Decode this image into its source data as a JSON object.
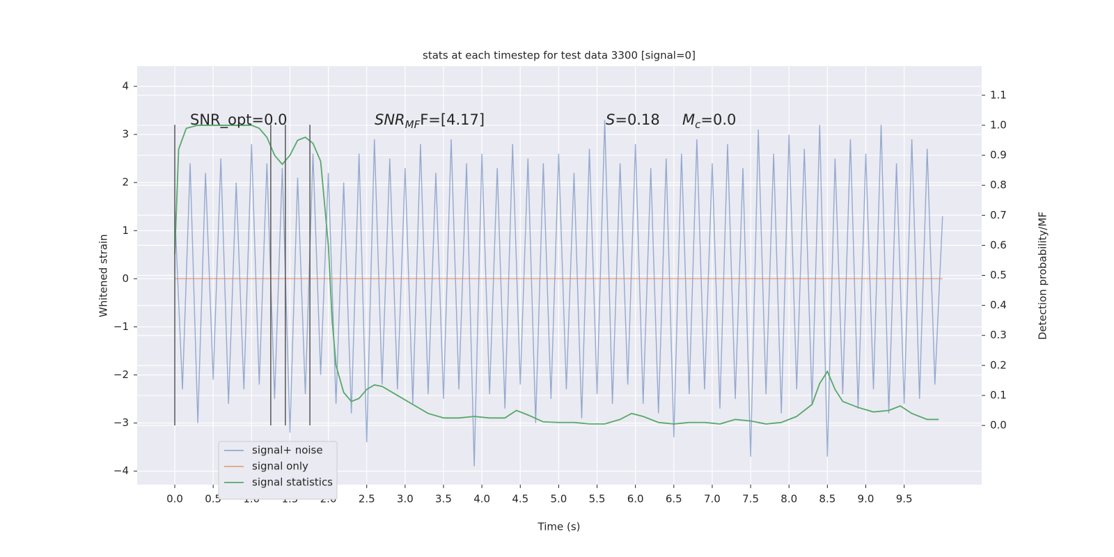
{
  "chart_data": {
    "type": "line",
    "title": "stats at each timestep for test data 3300 [signal=0]",
    "xlabel": "Time (s)",
    "ylabel": "Whitened strain",
    "y2label": "Detection probability/MF",
    "xlim": [
      -0.49,
      10.51
    ],
    "ylim": [
      -4.28,
      4.42
    ],
    "y2lim": [
      -0.197,
      1.197
    ],
    "xticks": [
      {
        "value": 0,
        "label": "0.0"
      },
      0.5,
      {
        "value": 1,
        "label": "1.0"
      },
      1.5,
      {
        "value": 2,
        "label": "2.0"
      },
      2.5,
      {
        "value": 3,
        "label": "3.0"
      },
      3.5,
      {
        "value": 4,
        "label": "4.0"
      },
      4.5,
      {
        "value": 5,
        "label": "5.0"
      },
      5.5,
      {
        "value": 6,
        "label": "6.0"
      },
      6.5,
      {
        "value": 7,
        "label": "7.0"
      },
      7.5,
      {
        "value": 8,
        "label": "8.0"
      },
      8.5,
      {
        "value": 9,
        "label": "9.0"
      },
      9.5
    ],
    "yticks": [
      {
        "value": -4,
        "label": "−4"
      },
      {
        "value": -3,
        "label": "−3"
      },
      {
        "value": -2,
        "label": "−2"
      },
      {
        "value": -1,
        "label": "−1"
      },
      0,
      1,
      2,
      3,
      4
    ],
    "y2ticks": [
      {
        "value": 0,
        "label": "0.0"
      },
      0.1,
      0.2,
      0.3,
      0.4,
      0.5,
      0.6,
      0.7,
      0.8,
      0.9,
      {
        "value": 1,
        "label": "1.0"
      },
      1.1
    ],
    "grid": true,
    "legend": "lower left",
    "series": [
      {
        "name": "signal+ noise",
        "color": "#4c72b0",
        "axis": "y",
        "x": [
          0,
          0.1,
          0.2,
          0.3,
          0.4,
          0.5,
          0.6,
          0.7,
          0.8,
          0.9,
          1,
          1.1,
          1.2,
          1.3,
          1.4,
          1.5,
          1.6,
          1.7,
          1.8,
          1.9,
          2,
          2.1,
          2.2,
          2.3,
          2.4,
          2.5,
          2.6,
          2.7,
          2.8,
          2.9,
          3,
          3.1,
          3.2,
          3.3,
          3.4,
          3.5,
          3.6,
          3.7,
          3.8,
          3.9,
          4,
          4.1,
          4.2,
          4.3,
          4.4,
          4.5,
          4.6,
          4.7,
          4.8,
          4.9,
          5,
          5.1,
          5.2,
          5.3,
          5.4,
          5.5,
          5.6,
          5.7,
          5.8,
          5.9,
          6,
          6.1,
          6.2,
          6.3,
          6.4,
          6.5,
          6.6,
          6.7,
          6.8,
          6.9,
          7,
          7.1,
          7.2,
          7.3,
          7.4,
          7.5,
          7.6,
          7.7,
          7.8,
          7.9,
          8,
          8.1,
          8.2,
          8.3,
          8.4,
          8.5,
          8.6,
          8.7,
          8.8,
          8.9,
          9,
          9.1,
          9.2,
          9.3,
          9.4,
          9.5,
          9.6,
          9.7,
          9.8,
          9.9,
          10
        ],
        "values": [
          1.4,
          -2.3,
          2.4,
          -3.0,
          2.2,
          -2.1,
          2.5,
          -2.6,
          2.0,
          -2.3,
          2.8,
          -2.2,
          2.4,
          -2.5,
          2.3,
          -3.2,
          2.1,
          -2.4,
          2.6,
          -2.0,
          2.2,
          -2.6,
          2.0,
          -2.8,
          2.6,
          -3.4,
          2.9,
          -2.2,
          2.5,
          -2.3,
          2.3,
          -2.6,
          2.8,
          -2.4,
          2.2,
          -2.5,
          2.9,
          -2.3,
          2.4,
          -3.9,
          2.6,
          -2.4,
          2.3,
          -2.7,
          2.8,
          -2.2,
          2.5,
          -3.0,
          2.4,
          -2.5,
          2.6,
          -2.3,
          2.2,
          -2.9,
          2.7,
          -2.4,
          3.3,
          -2.6,
          2.4,
          -2.2,
          2.8,
          -2.6,
          2.3,
          -2.8,
          2.5,
          -3.3,
          2.6,
          -2.4,
          2.9,
          -2.3,
          2.4,
          -2.7,
          2.8,
          -2.5,
          2.3,
          -3.7,
          3.1,
          -2.4,
          2.6,
          -2.8,
          3.0,
          -2.3,
          2.7,
          -2.6,
          3.2,
          -3.7,
          2.5,
          -2.4,
          2.9,
          -2.7,
          2.6,
          -2.3,
          3.2,
          -2.8,
          2.4,
          -2.6,
          2.9,
          -2.5,
          2.7,
          -2.2,
          1.3
        ]
      },
      {
        "name": "signal only",
        "color": "#dd8452",
        "axis": "y",
        "x": [
          0,
          10
        ],
        "values": [
          0,
          0
        ]
      },
      {
        "name": "signal statistics",
        "color": "#55a868",
        "axis": "y2",
        "x": [
          0,
          0.05,
          0.15,
          0.3,
          0.5,
          0.7,
          0.9,
          1,
          1.1,
          1.2,
          1.3,
          1.4,
          1.5,
          1.6,
          1.7,
          1.8,
          1.9,
          2,
          2.05,
          2.1,
          2.2,
          2.3,
          2.4,
          2.5,
          2.6,
          2.7,
          2.9,
          3.1,
          3.3,
          3.5,
          3.7,
          3.9,
          4.1,
          4.3,
          4.45,
          4.6,
          4.8,
          5,
          5.2,
          5.4,
          5.6,
          5.8,
          5.95,
          6.1,
          6.3,
          6.5,
          6.7,
          6.9,
          7.1,
          7.3,
          7.5,
          7.7,
          7.9,
          8.1,
          8.3,
          8.4,
          8.5,
          8.6,
          8.7,
          8.9,
          9.1,
          9.3,
          9.45,
          9.6,
          9.8,
          9.95
        ],
        "values": [
          0.57,
          0.92,
          0.99,
          1.0,
          1.0,
          1.0,
          1.0,
          1.0,
          0.99,
          0.96,
          0.9,
          0.87,
          0.9,
          0.95,
          0.96,
          0.94,
          0.88,
          0.6,
          0.35,
          0.2,
          0.11,
          0.08,
          0.09,
          0.12,
          0.135,
          0.13,
          0.1,
          0.07,
          0.04,
          0.025,
          0.025,
          0.03,
          0.025,
          0.025,
          0.05,
          0.035,
          0.012,
          0.01,
          0.01,
          0.005,
          0.005,
          0.02,
          0.04,
          0.03,
          0.01,
          0.005,
          0.01,
          0.01,
          0.005,
          0.02,
          0.015,
          0.005,
          0.01,
          0.03,
          0.07,
          0.14,
          0.18,
          0.12,
          0.08,
          0.06,
          0.045,
          0.05,
          0.065,
          0.04,
          0.02,
          0.02
        ]
      }
    ],
    "vlines": {
      "color": "#555555",
      "x": [
        0,
        1.25,
        1.44,
        1.76
      ],
      "ymin": -3.05,
      "ymax": 3.2
    },
    "annotations": [
      [
        {
          "text": "SNR_opt=0.0"
        }
      ],
      [
        {
          "text": "SNR",
          "italic": true
        },
        {
          "text": "MF",
          "italic": true,
          "sub": true
        },
        {
          "text": "F=[4.17]"
        }
      ],
      [
        {
          "text": "S",
          "italic": true
        },
        {
          "text": "=0.18"
        }
      ],
      [
        {
          "text": "M",
          "italic": true
        },
        {
          "text": "c",
          "italic": true,
          "sub": true
        },
        {
          "text": "=0.0"
        }
      ]
    ]
  }
}
